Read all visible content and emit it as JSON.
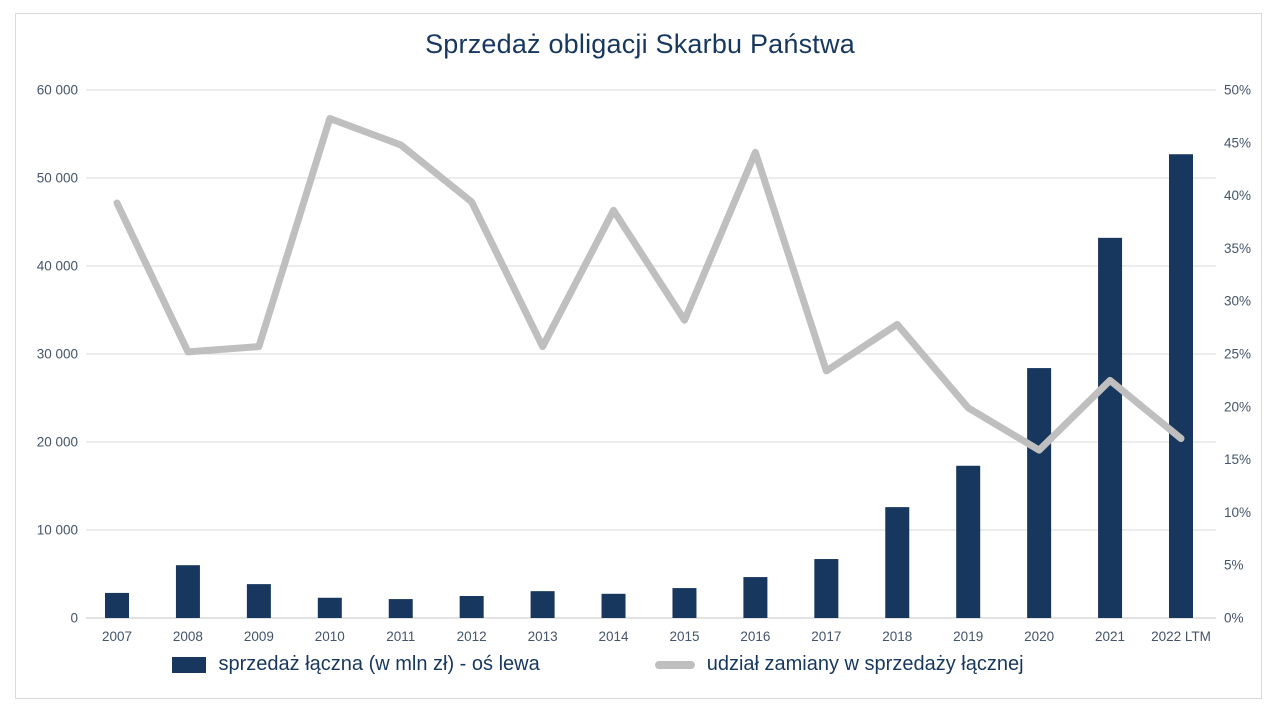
{
  "chart_data": {
    "type": "bar",
    "subtype": "combo-bar-line-dual-axis",
    "title": "Sprzedaż obligacji Skarbu Państwa",
    "categories": [
      "2007",
      "2008",
      "2009",
      "2010",
      "2011",
      "2012",
      "2013",
      "2014",
      "2015",
      "2016",
      "2017",
      "2018",
      "2019",
      "2020",
      "2021",
      "2022 LTM"
    ],
    "series": [
      {
        "name": "sprzedaż łączna (w mln zł) - oś lewa",
        "type": "bar",
        "axis": "left",
        "color": "#17375e",
        "values": [
          2850,
          6000,
          3850,
          2300,
          2150,
          2500,
          3050,
          2750,
          3400,
          4650,
          6700,
          12600,
          17300,
          28400,
          43200,
          52700
        ]
      },
      {
        "name": "udział zamiany w sprzedaży łącznej",
        "type": "line",
        "axis": "right",
        "color": "#bfbfbf",
        "values": [
          39.3,
          25.2,
          25.7,
          47.3,
          44.8,
          39.4,
          25.7,
          38.6,
          28.2,
          44.1,
          23.4,
          27.8,
          19.9,
          15.9,
          22.5,
          17.0
        ]
      }
    ],
    "left_axis": {
      "min": 0,
      "max": 60000,
      "tick_labels": [
        "0",
        "10 000",
        "20 000",
        "30 000",
        "40 000",
        "50 000",
        "60 000"
      ]
    },
    "right_axis": {
      "min": 0,
      "max": 50,
      "unit": "%",
      "tick_labels": [
        "0%",
        "5%",
        "10%",
        "15%",
        "20%",
        "25%",
        "30%",
        "35%",
        "40%",
        "45%",
        "50%"
      ]
    },
    "grid": "horizontal-left-axis-only",
    "legend_position": "bottom",
    "colors": {
      "gridline": "#d9d9d9",
      "baseline": "#c6c6c6",
      "axis_text": "#44546a",
      "title_text": "#17375e"
    }
  }
}
